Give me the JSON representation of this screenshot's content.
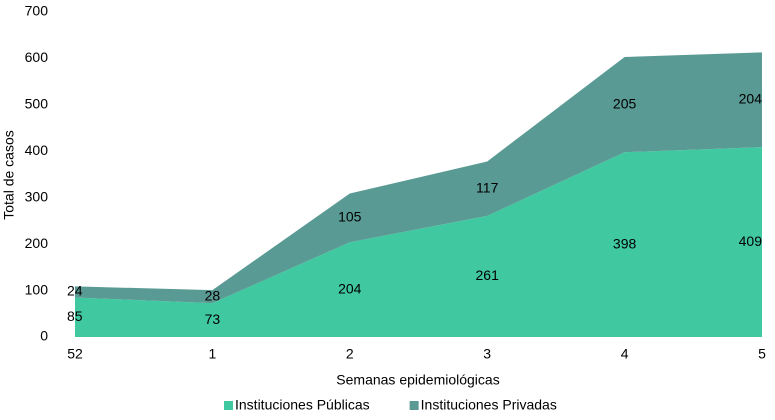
{
  "chart_data": {
    "type": "stacked_area",
    "x_label": "Semanas epidemiológicas",
    "y_label": "Total de casos",
    "categories": [
      "52",
      "1",
      "2",
      "3",
      "4",
      "5"
    ],
    "series": [
      {
        "name": "Instituciones Públicas",
        "color": "#40c8a0",
        "values": [
          85,
          73,
          204,
          261,
          398,
          409
        ]
      },
      {
        "name": "Instituciones Privadas",
        "color": "#5a9a94",
        "values": [
          24,
          28,
          105,
          117,
          205,
          204
        ]
      }
    ],
    "ylim": [
      0,
      700
    ],
    "yticks": [
      0,
      100,
      200,
      300,
      400,
      500,
      600,
      700
    ]
  }
}
